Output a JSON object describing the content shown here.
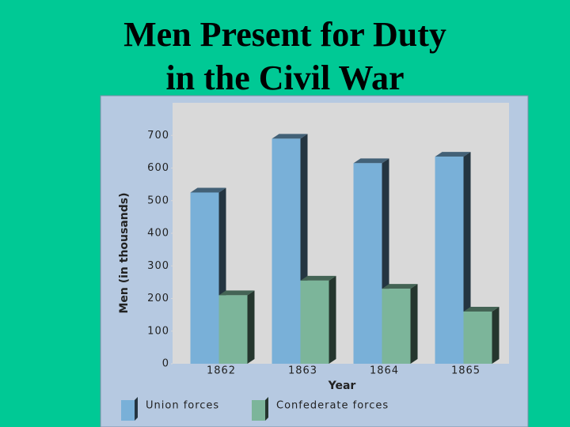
{
  "chart_data": {
    "type": "bar",
    "title": "Men Present for Duty in the Civil War",
    "categories": [
      "1862",
      "1863",
      "1864",
      "1865"
    ],
    "series": [
      {
        "name": "Union forces",
        "color": "#79b0d8",
        "values": [
          525,
          690,
          615,
          635
        ]
      },
      {
        "name": "Confederate forces",
        "color": "#7cb59a",
        "values": [
          210,
          255,
          230,
          160
        ]
      }
    ],
    "y_label": "Men (in thousands)",
    "x_label": "Year",
    "ylim": [
      0,
      800
    ],
    "yticks": [
      0,
      100,
      200,
      300,
      400,
      500,
      600,
      700
    ]
  }
}
